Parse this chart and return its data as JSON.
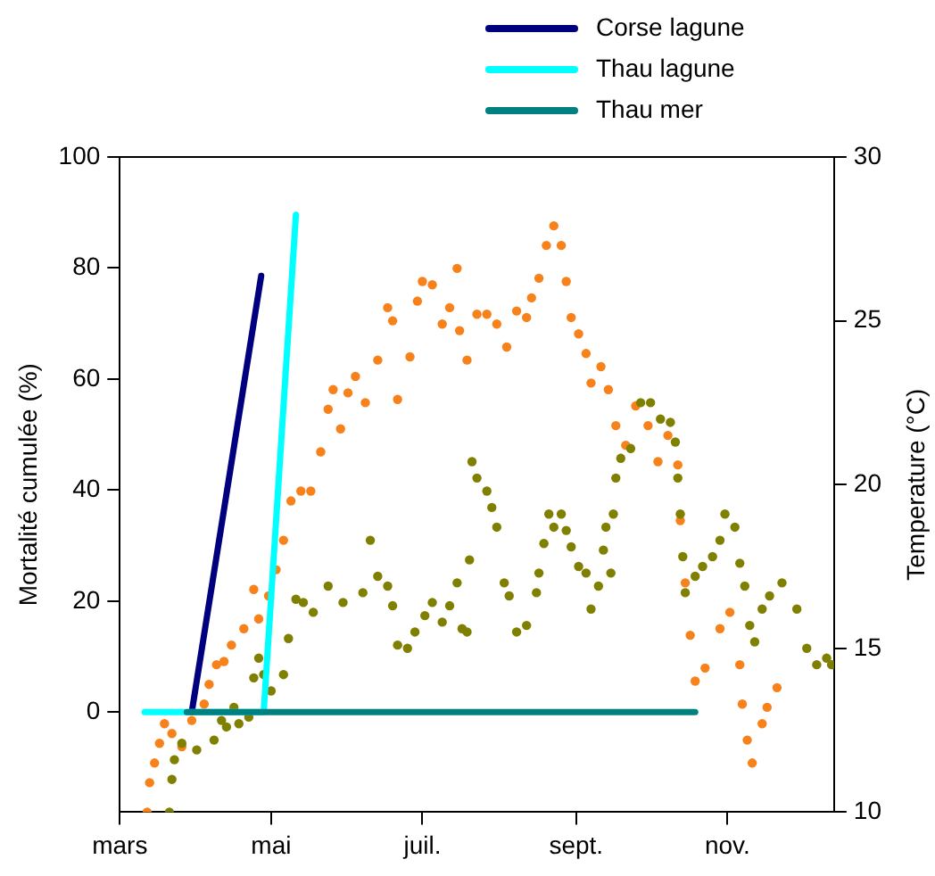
{
  "chart_data": {
    "type": "line",
    "ylabel": "Mortalité cumulée (%)",
    "y2label": "Temperature (°C)",
    "xlim": [
      "--03-01",
      "--12-14"
    ],
    "xticks": [
      {
        "value": "--03-01",
        "label": "mars"
      },
      {
        "value": "--05-01",
        "label": "mai"
      },
      {
        "value": "--07-01",
        "label": "juil."
      },
      {
        "value": "--09-01",
        "label": "sept."
      },
      {
        "value": "--11-01",
        "label": "nov."
      }
    ],
    "ylim": [
      -18,
      100
    ],
    "yticks": [
      0,
      20,
      40,
      60,
      80,
      100
    ],
    "y2lim": [
      10,
      30
    ],
    "y2ticks": [
      10,
      15,
      20,
      25,
      30
    ],
    "grid": false,
    "legend": "top right",
    "series": [
      {
        "type": "scatter",
        "axis": "y2",
        "marker": "circle",
        "color": "#f7821b",
        "x": [
          "--03-12",
          "--03-13",
          "--03-15",
          "--03-17",
          "--03-19",
          "--03-22",
          "--03-26",
          "--03-30",
          "--04-04",
          "--04-06",
          "--04-09",
          "--04-12",
          "--04-15",
          "--04-20",
          "--04-24",
          "--04-26",
          "--04-30",
          "--05-03",
          "--05-06",
          "--05-09",
          "--05-13",
          "--05-17",
          "--05-21",
          "--05-24",
          "--05-26",
          "--05-29",
          "--06-01",
          "--06-04",
          "--06-08",
          "--06-13",
          "--06-17",
          "--06-19",
          "--06-21",
          "--06-26",
          "--06-29",
          "--07-01",
          "--07-05",
          "--07-09",
          "--07-12",
          "--07-15",
          "--07-16",
          "--07-19",
          "--07-23",
          "--07-27",
          "--07-31",
          "--08-04",
          "--08-08",
          "--08-12",
          "--08-14",
          "--08-17",
          "--08-20",
          "--08-23",
          "--08-26",
          "--08-28",
          "--08-30",
          "--09-02",
          "--09-05",
          "--09-07",
          "--09-11",
          "--09-14",
          "--09-17",
          "--09-21",
          "--09-25",
          "--09-30",
          "--10-04",
          "--10-08",
          "--10-12",
          "--10-13",
          "--10-15",
          "--10-17",
          "--10-19",
          "--10-23",
          "--10-29",
          "--11-02",
          "--11-06",
          "--11-07",
          "--11-09",
          "--11-11",
          "--11-15",
          "--11-17",
          "--11-21"
        ],
        "values": [
          10.0,
          10.9,
          11.5,
          12.1,
          12.7,
          12.4,
          12.0,
          12.8,
          13.3,
          13.9,
          14.5,
          14.6,
          15.1,
          15.6,
          16.8,
          15.9,
          16.6,
          17.4,
          18.3,
          19.5,
          19.8,
          19.8,
          21.0,
          22.3,
          22.9,
          21.7,
          22.8,
          23.3,
          22.5,
          23.8,
          25.4,
          25.0,
          22.6,
          23.9,
          25.6,
          26.2,
          26.1,
          24.9,
          25.4,
          26.6,
          24.7,
          23.8,
          25.2,
          25.2,
          24.9,
          24.2,
          25.3,
          25.1,
          25.7,
          26.3,
          27.3,
          27.9,
          27.3,
          26.2,
          25.1,
          24.6,
          24.0,
          23.1,
          23.6,
          22.9,
          21.8,
          21.2,
          22.4,
          21.8,
          20.7,
          21.5,
          20.6,
          18.9,
          17.0,
          15.4,
          14.0,
          14.4,
          15.6,
          16.1,
          14.5,
          13.3,
          12.2,
          11.5,
          12.7,
          13.2,
          13.8
        ]
      },
      {
        "type": "scatter",
        "axis": "y2",
        "marker": "circle",
        "color": "#7f7f00",
        "x": [
          "--03-21",
          "--03-22",
          "--03-23",
          "--03-26",
          "--04-01",
          "--04-08",
          "--04-11",
          "--04-13",
          "--04-16",
          "--04-18",
          "--04-22",
          "--04-24",
          "--04-26",
          "--04-28",
          "--05-01",
          "--05-06",
          "--05-08",
          "--05-11",
          "--05-14",
          "--05-18",
          "--05-24",
          "--05-30",
          "--06-07",
          "--06-10",
          "--06-13",
          "--06-17",
          "--06-19",
          "--06-21",
          "--06-25",
          "--06-28",
          "--07-02",
          "--07-05",
          "--07-09",
          "--07-12",
          "--07-15",
          "--07-17",
          "--07-19",
          "--07-20",
          "--07-21",
          "--07-23",
          "--07-27",
          "--07-29",
          "--07-31",
          "--08-03",
          "--08-05",
          "--08-08",
          "--08-12",
          "--08-16",
          "--08-17",
          "--08-19",
          "--08-21",
          "--08-23",
          "--08-26",
          "--08-28",
          "--08-30",
          "--09-02",
          "--09-05",
          "--09-07",
          "--09-10",
          "--09-12",
          "--09-13",
          "--09-15",
          "--09-16",
          "--09-17",
          "--09-19",
          "--09-23",
          "--09-27",
          "--10-01",
          "--10-05",
          "--10-09",
          "--10-11",
          "--10-12",
          "--10-13",
          "--10-14",
          "--10-15",
          "--10-19",
          "--10-22",
          "--10-26",
          "--10-29",
          "--10-31",
          "--11-04",
          "--11-06",
          "--11-08",
          "--11-10",
          "--11-12",
          "--11-15",
          "--11-18",
          "--11-23",
          "--11-29",
          "--12-03",
          "--12-07",
          "--12-11",
          "--12-13"
        ],
        "values": [
          10.0,
          11.0,
          11.6,
          12.1,
          11.9,
          12.2,
          12.8,
          12.6,
          13.2,
          12.7,
          12.9,
          14.1,
          14.7,
          14.2,
          13.7,
          14.2,
          15.3,
          16.5,
          16.4,
          16.1,
          16.9,
          16.4,
          16.7,
          18.3,
          17.2,
          16.9,
          16.3,
          15.1,
          15.0,
          15.5,
          16.0,
          16.4,
          15.8,
          16.3,
          17.0,
          15.6,
          15.5,
          17.7,
          20.7,
          20.2,
          19.8,
          19.3,
          18.7,
          17.0,
          16.6,
          15.5,
          15.7,
          16.7,
          17.3,
          18.2,
          19.1,
          18.7,
          19.1,
          18.6,
          18.1,
          17.5,
          17.3,
          16.2,
          16.9,
          18.0,
          18.7,
          17.3,
          19.1,
          20.2,
          20.8,
          21.1,
          22.5,
          22.5,
          22.0,
          21.9,
          21.3,
          20.2,
          19.1,
          17.8,
          16.7,
          17.2,
          17.5,
          17.8,
          18.3,
          19.1,
          18.7,
          17.6,
          16.9,
          15.7,
          15.2,
          16.2,
          16.6,
          17.0,
          16.2,
          15.0,
          14.5,
          14.7,
          14.5
        ]
      },
      {
        "name": "Corse lagune",
        "type": "line",
        "color": "#00007f",
        "x": [
          "--03-30",
          "--04-27"
        ],
        "values": [
          0,
          78.6
        ]
      },
      {
        "name": "Thau lagune",
        "type": "line",
        "color": "#00ffff",
        "x": [
          "--03-11",
          "--04-28",
          "--05-11"
        ],
        "values": [
          0,
          0,
          89.6
        ]
      },
      {
        "name": "Thau mer",
        "type": "line",
        "color": "#008080",
        "x": [
          "--03-28",
          "--10-19"
        ],
        "values": [
          0,
          0
        ]
      }
    ]
  }
}
